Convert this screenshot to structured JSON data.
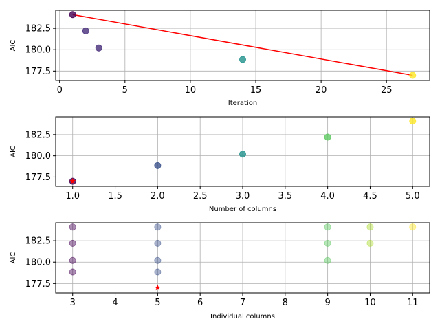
{
  "chart_data": [
    {
      "type": "scatter",
      "xlabel": "Iteration",
      "ylabel": "AIC",
      "xlim": [
        -0.3,
        28.3
      ],
      "ylim": [
        176.4,
        184.6
      ],
      "xticks": [
        0,
        5,
        10,
        15,
        20,
        25
      ],
      "yticks": [
        177.5,
        180.0,
        182.5
      ],
      "grid": true,
      "points": [
        {
          "x": 1,
          "y": 184.1,
          "color": "#440154"
        },
        {
          "x": 2,
          "y": 182.2,
          "color": "#472d7b"
        },
        {
          "x": 3,
          "y": 180.2,
          "color": "#472d7b"
        },
        {
          "x": 14,
          "y": 178.85,
          "color": "#21918c"
        },
        {
          "x": 27,
          "y": 177.0,
          "color": "#fde725"
        }
      ],
      "line": {
        "x": [
          1,
          27
        ],
        "y": [
          184.1,
          177.0
        ],
        "color": "#ff0000"
      }
    },
    {
      "type": "scatter",
      "xlabel": "Number of columns",
      "ylabel": "AIC",
      "xlim": [
        0.8,
        5.2
      ],
      "ylim": [
        176.4,
        184.6
      ],
      "xticks": [
        1.0,
        1.5,
        2.0,
        2.5,
        3.0,
        3.5,
        4.0,
        4.5,
        5.0
      ],
      "yticks": [
        177.5,
        180.0,
        182.5
      ],
      "grid": true,
      "points": [
        {
          "x": 1,
          "y": 177.0,
          "color": "#440154"
        },
        {
          "x": 2,
          "y": 178.85,
          "color": "#3b528b"
        },
        {
          "x": 3,
          "y": 180.2,
          "color": "#21918c"
        },
        {
          "x": 4,
          "y": 182.2,
          "color": "#5ec962"
        },
        {
          "x": 5,
          "y": 184.1,
          "color": "#fde725"
        }
      ],
      "best": {
        "x": 1,
        "y": 177.0,
        "color": "#ff0000",
        "marker": "star"
      }
    },
    {
      "type": "scatter",
      "xlabel": "Individual columns",
      "ylabel": "AIC",
      "xlim": [
        2.6,
        11.4
      ],
      "ylim": [
        176.4,
        184.6
      ],
      "xticks": [
        3,
        4,
        5,
        6,
        7,
        8,
        9,
        10,
        11
      ],
      "yticks": [
        177.5,
        180.0,
        182.5
      ],
      "grid": true,
      "points": [
        {
          "x": 3,
          "y": 184.1,
          "color": "#440154"
        },
        {
          "x": 3,
          "y": 182.2,
          "color": "#440154"
        },
        {
          "x": 3,
          "y": 180.2,
          "color": "#440154"
        },
        {
          "x": 3,
          "y": 178.85,
          "color": "#440154"
        },
        {
          "x": 5,
          "y": 184.1,
          "color": "#3b528b"
        },
        {
          "x": 5,
          "y": 182.2,
          "color": "#3b528b"
        },
        {
          "x": 5,
          "y": 180.2,
          "color": "#3b528b"
        },
        {
          "x": 5,
          "y": 178.85,
          "color": "#3b528b"
        },
        {
          "x": 9,
          "y": 184.1,
          "color": "#5ec962"
        },
        {
          "x": 9,
          "y": 182.2,
          "color": "#5ec962"
        },
        {
          "x": 9,
          "y": 180.2,
          "color": "#5ec962"
        },
        {
          "x": 10,
          "y": 184.1,
          "color": "#addc30"
        },
        {
          "x": 10,
          "y": 182.2,
          "color": "#addc30"
        },
        {
          "x": 11,
          "y": 184.1,
          "color": "#fde725"
        }
      ],
      "point_alpha": 0.45,
      "best": {
        "x": 5,
        "y": 177.0,
        "color": "#ff0000",
        "marker": "star"
      }
    }
  ]
}
